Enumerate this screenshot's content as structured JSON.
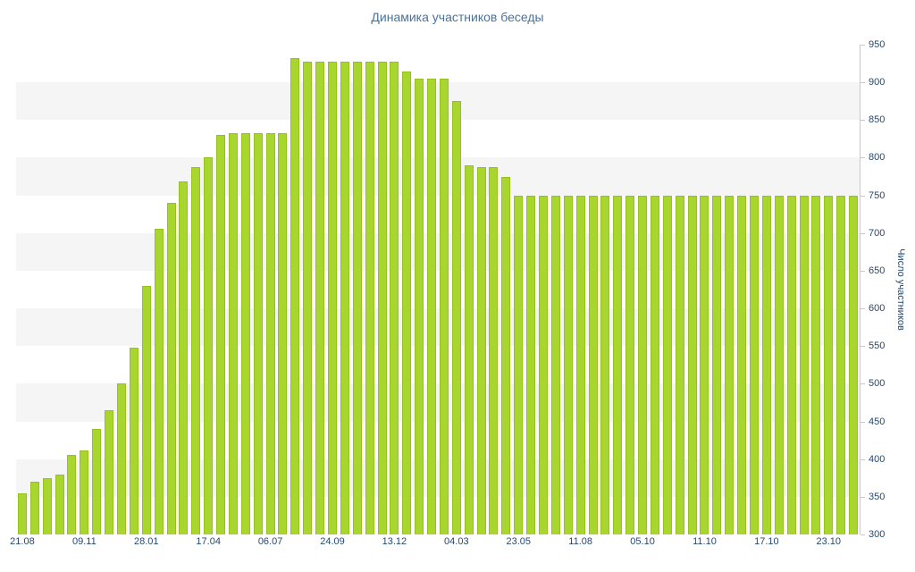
{
  "title": "Динамика участников беседы",
  "colors": {
    "bar_fill": "#a8d52e",
    "bar_border": "#96c21e",
    "title_text": "#4a7399",
    "axis_text": "#26496e",
    "stripe": "#f5f5f5",
    "axis_line": "#c8c8c8"
  },
  "chart_data": {
    "type": "bar",
    "title": "Динамика участников беседы",
    "xlabel": "",
    "ylabel": "Число участников",
    "ylim": [
      300,
      950
    ],
    "y_tick_step": 50,
    "y_tick_labels": [
      "950",
      "900",
      "850",
      "800",
      "750",
      "700",
      "650",
      "600",
      "550",
      "500",
      "450",
      "400",
      "350",
      "300"
    ],
    "x_tick_labels": [
      "21.08",
      "09.11",
      "28.01",
      "17.04",
      "06.07",
      "24.09",
      "13.12",
      "04.03",
      "23.05",
      "11.08",
      "05.10",
      "11.10",
      "17.10",
      "23.10"
    ],
    "x_tick_every": 5,
    "grid": "horizontal-stripes",
    "legend": "none",
    "values": [
      355,
      370,
      375,
      380,
      405,
      412,
      440,
      465,
      500,
      548,
      630,
      706,
      740,
      768,
      788,
      800,
      830,
      833,
      833,
      833,
      833,
      833,
      932,
      928,
      928,
      928,
      928,
      928,
      928,
      928,
      928,
      915,
      905,
      905,
      905,
      875,
      790,
      788,
      788,
      775,
      750,
      750,
      750,
      750,
      750,
      750,
      750,
      750,
      750,
      750,
      750,
      750,
      750,
      750,
      750,
      750,
      750,
      750,
      750,
      750,
      750,
      750,
      750,
      750,
      750,
      750,
      750,
      750
    ]
  }
}
